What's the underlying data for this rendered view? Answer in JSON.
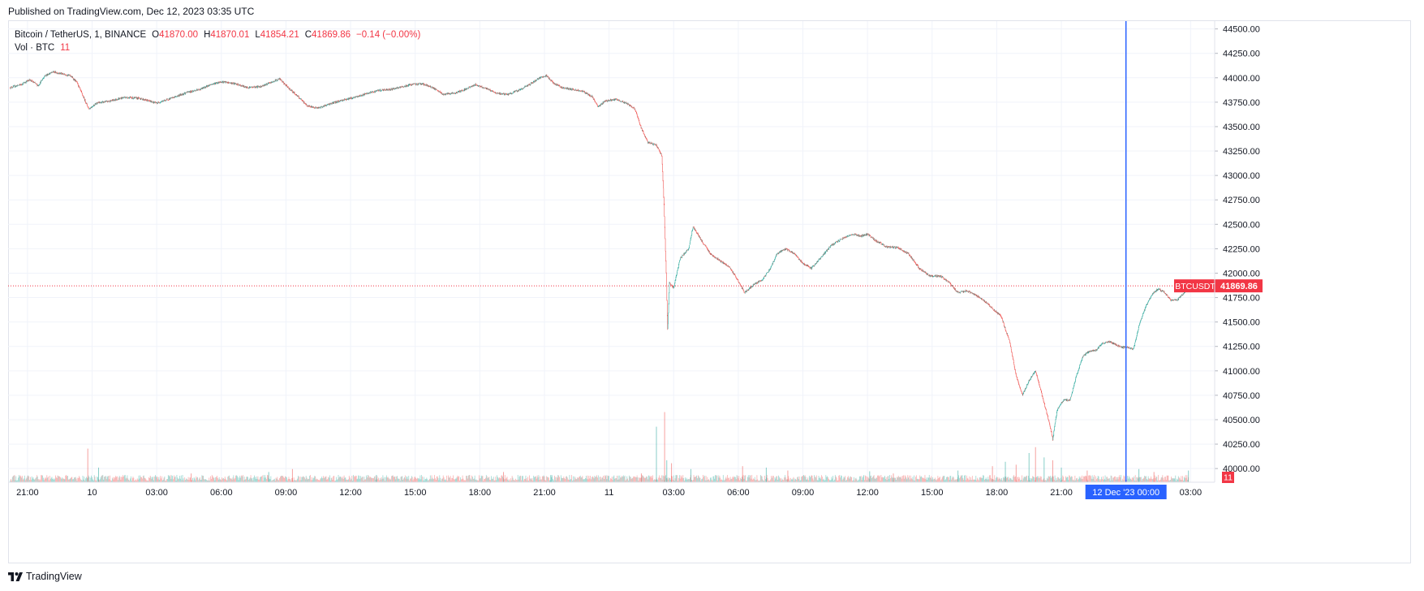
{
  "header": {
    "published": "Published on TradingView.com, Dec 12, 2023 03:35 UTC"
  },
  "legend": {
    "symbol": "Bitcoin / TetherUS, 1, BINANCE",
    "open_label": "O",
    "open": "41870.00",
    "high_label": "H",
    "high": "41870.01",
    "low_label": "L",
    "low": "41854.21",
    "close_label": "C",
    "close": "41869.86",
    "change": "−0.14 (−0.00%)",
    "volume_label": "Vol · BTC",
    "volume_value": "11"
  },
  "brand": {
    "name": "TradingView",
    "logo": "tradingview-logo-icon"
  },
  "colors": {
    "up": "#26a69a",
    "down": "#ef5350",
    "crosshair": "#2962ff",
    "price_tag": "#f23645",
    "grid": "#f0f3fa",
    "axis_text": "#131722"
  },
  "chart_data": {
    "type": "candlestick",
    "symbol": "BTCUSDT",
    "interval": "1",
    "y_axis": {
      "ticks": [
        "44500.00",
        "44250.00",
        "44000.00",
        "43750.00",
        "43500.00",
        "43250.00",
        "43000.00",
        "42750.00",
        "42500.00",
        "42250.00",
        "42000.00",
        "41750.00",
        "41500.00",
        "41250.00",
        "41000.00",
        "40750.00",
        "40500.00",
        "40250.00",
        "40000.00"
      ],
      "range": [
        39860,
        44580
      ]
    },
    "x_axis": {
      "ticks": [
        {
          "label": "21:00",
          "hour": 21
        },
        {
          "label": "10",
          "hour": 24
        },
        {
          "label": "03:00",
          "hour": 27
        },
        {
          "label": "06:00",
          "hour": 30
        },
        {
          "label": "09:00",
          "hour": 33
        },
        {
          "label": "12:00",
          "hour": 36
        },
        {
          "label": "15:00",
          "hour": 39
        },
        {
          "label": "18:00",
          "hour": 42
        },
        {
          "label": "21:00",
          "hour": 45
        },
        {
          "label": "11",
          "hour": 48
        },
        {
          "label": "03:00",
          "hour": 51
        },
        {
          "label": "06:00",
          "hour": 54
        },
        {
          "label": "09:00",
          "hour": 57
        },
        {
          "label": "12:00",
          "hour": 60
        },
        {
          "label": "15:00",
          "hour": 63
        },
        {
          "label": "18:00",
          "hour": 66
        },
        {
          "label": "21:00",
          "hour": 69
        },
        {
          "label": "03:00",
          "hour": 75
        }
      ],
      "range_hours": [
        20.1,
        76.08
      ]
    },
    "crosshair": {
      "label": "12 Dec '23   00:00",
      "hour": 72
    },
    "last_price": {
      "symbol_label": "BTCUSDT",
      "value": "41869.86",
      "price": 41869.86,
      "volume_label": "11"
    },
    "price_path": [
      [
        20.2,
        43900
      ],
      [
        20.7,
        43930
      ],
      [
        21.1,
        43980
      ],
      [
        21.5,
        43920
      ],
      [
        21.8,
        44020
      ],
      [
        22.2,
        44060
      ],
      [
        22.6,
        44040
      ],
      [
        23.0,
        44020
      ],
      [
        23.3,
        43950
      ],
      [
        23.6,
        43800
      ],
      [
        23.85,
        43680
      ],
      [
        24.2,
        43740
      ],
      [
        24.8,
        43760
      ],
      [
        25.5,
        43800
      ],
      [
        26.2,
        43790
      ],
      [
        27.0,
        43740
      ],
      [
        27.8,
        43800
      ],
      [
        28.4,
        43850
      ],
      [
        29.0,
        43880
      ],
      [
        29.5,
        43930
      ],
      [
        30.0,
        43960
      ],
      [
        30.6,
        43940
      ],
      [
        31.2,
        43900
      ],
      [
        31.8,
        43910
      ],
      [
        32.3,
        43950
      ],
      [
        32.7,
        43990
      ],
      [
        33.0,
        43920
      ],
      [
        33.5,
        43820
      ],
      [
        34.0,
        43710
      ],
      [
        34.5,
        43690
      ],
      [
        35.0,
        43730
      ],
      [
        35.6,
        43770
      ],
      [
        36.2,
        43800
      ],
      [
        36.8,
        43840
      ],
      [
        37.3,
        43870
      ],
      [
        37.8,
        43880
      ],
      [
        38.3,
        43900
      ],
      [
        38.8,
        43930
      ],
      [
        39.3,
        43940
      ],
      [
        39.8,
        43900
      ],
      [
        40.3,
        43830
      ],
      [
        40.8,
        43840
      ],
      [
        41.3,
        43880
      ],
      [
        41.8,
        43930
      ],
      [
        42.3,
        43890
      ],
      [
        42.8,
        43840
      ],
      [
        43.3,
        43830
      ],
      [
        43.8,
        43870
      ],
      [
        44.3,
        43930
      ],
      [
        44.8,
        44000
      ],
      [
        45.1,
        44020
      ],
      [
        45.4,
        43950
      ],
      [
        45.8,
        43900
      ],
      [
        46.3,
        43880
      ],
      [
        46.8,
        43860
      ],
      [
        47.2,
        43810
      ],
      [
        47.5,
        43700
      ],
      [
        47.8,
        43760
      ],
      [
        48.3,
        43780
      ],
      [
        48.8,
        43740
      ],
      [
        49.2,
        43680
      ],
      [
        49.5,
        43480
      ],
      [
        49.8,
        43340
      ],
      [
        50.2,
        43310
      ],
      [
        50.45,
        43200
      ],
      [
        50.55,
        42700
      ],
      [
        50.65,
        42000
      ],
      [
        50.72,
        41400
      ],
      [
        50.8,
        41900
      ],
      [
        51.0,
        41850
      ],
      [
        51.3,
        42150
      ],
      [
        51.7,
        42250
      ],
      [
        51.9,
        42480
      ],
      [
        52.3,
        42330
      ],
      [
        52.7,
        42200
      ],
      [
        53.2,
        42120
      ],
      [
        53.6,
        42060
      ],
      [
        54.0,
        41920
      ],
      [
        54.3,
        41800
      ],
      [
        54.7,
        41880
      ],
      [
        55.1,
        41930
      ],
      [
        55.5,
        42050
      ],
      [
        55.8,
        42200
      ],
      [
        56.2,
        42250
      ],
      [
        56.6,
        42200
      ],
      [
        57.0,
        42100
      ],
      [
        57.4,
        42050
      ],
      [
        57.8,
        42150
      ],
      [
        58.3,
        42280
      ],
      [
        58.8,
        42350
      ],
      [
        59.3,
        42400
      ],
      [
        59.7,
        42380
      ],
      [
        60.0,
        42400
      ],
      [
        60.4,
        42330
      ],
      [
        60.9,
        42270
      ],
      [
        61.4,
        42260
      ],
      [
        61.9,
        42200
      ],
      [
        62.4,
        42050
      ],
      [
        62.9,
        41970
      ],
      [
        63.4,
        41970
      ],
      [
        63.8,
        41900
      ],
      [
        64.2,
        41800
      ],
      [
        64.6,
        41820
      ],
      [
        65.0,
        41780
      ],
      [
        65.4,
        41720
      ],
      [
        65.8,
        41640
      ],
      [
        66.2,
        41560
      ],
      [
        66.6,
        41300
      ],
      [
        66.9,
        40950
      ],
      [
        67.2,
        40750
      ],
      [
        67.5,
        40900
      ],
      [
        67.8,
        41000
      ],
      [
        68.1,
        40750
      ],
      [
        68.4,
        40500
      ],
      [
        68.6,
        40300
      ],
      [
        68.8,
        40600
      ],
      [
        69.1,
        40700
      ],
      [
        69.4,
        40700
      ],
      [
        69.7,
        40950
      ],
      [
        70.0,
        41150
      ],
      [
        70.3,
        41200
      ],
      [
        70.6,
        41210
      ],
      [
        70.9,
        41280
      ],
      [
        71.2,
        41300
      ],
      [
        71.5,
        41270
      ],
      [
        71.8,
        41240
      ],
      [
        72.1,
        41240
      ],
      [
        72.35,
        41220
      ],
      [
        72.6,
        41460
      ],
      [
        72.9,
        41650
      ],
      [
        73.2,
        41780
      ],
      [
        73.5,
        41840
      ],
      [
        73.8,
        41800
      ],
      [
        74.1,
        41720
      ],
      [
        74.4,
        41730
      ],
      [
        74.7,
        41800
      ],
      [
        74.9,
        41869.86
      ]
    ],
    "volume_spikes": [
      {
        "hour": 23.8,
        "btc": 46
      },
      {
        "hour": 24.3,
        "btc": 20
      },
      {
        "hour": 28.6,
        "btc": 12
      },
      {
        "hour": 32.2,
        "btc": 14
      },
      {
        "hour": 33.3,
        "btc": 18
      },
      {
        "hour": 37.2,
        "btc": 10
      },
      {
        "hour": 43.1,
        "btc": 14
      },
      {
        "hour": 45.3,
        "btc": 10
      },
      {
        "hour": 49.5,
        "btc": 12
      },
      {
        "hour": 50.2,
        "btc": 76
      },
      {
        "hour": 50.58,
        "btc": 96
      },
      {
        "hour": 50.68,
        "btc": 30
      },
      {
        "hour": 50.9,
        "btc": 26
      },
      {
        "hour": 51.8,
        "btc": 18
      },
      {
        "hour": 54.2,
        "btc": 22
      },
      {
        "hour": 55.3,
        "btc": 20
      },
      {
        "hour": 56.3,
        "btc": 16
      },
      {
        "hour": 60.1,
        "btc": 15
      },
      {
        "hour": 61.2,
        "btc": 12
      },
      {
        "hour": 64.2,
        "btc": 16
      },
      {
        "hour": 65.8,
        "btc": 22
      },
      {
        "hour": 66.4,
        "btc": 28
      },
      {
        "hour": 66.9,
        "btc": 24
      },
      {
        "hour": 67.5,
        "btc": 40
      },
      {
        "hour": 67.8,
        "btc": 48
      },
      {
        "hour": 68.2,
        "btc": 34
      },
      {
        "hour": 68.6,
        "btc": 30
      },
      {
        "hour": 69.0,
        "btc": 20
      },
      {
        "hour": 70.2,
        "btc": 16
      },
      {
        "hour": 72.6,
        "btc": 18
      },
      {
        "hour": 73.3,
        "btc": 14
      },
      {
        "hour": 74.9,
        "btc": 16
      }
    ]
  }
}
